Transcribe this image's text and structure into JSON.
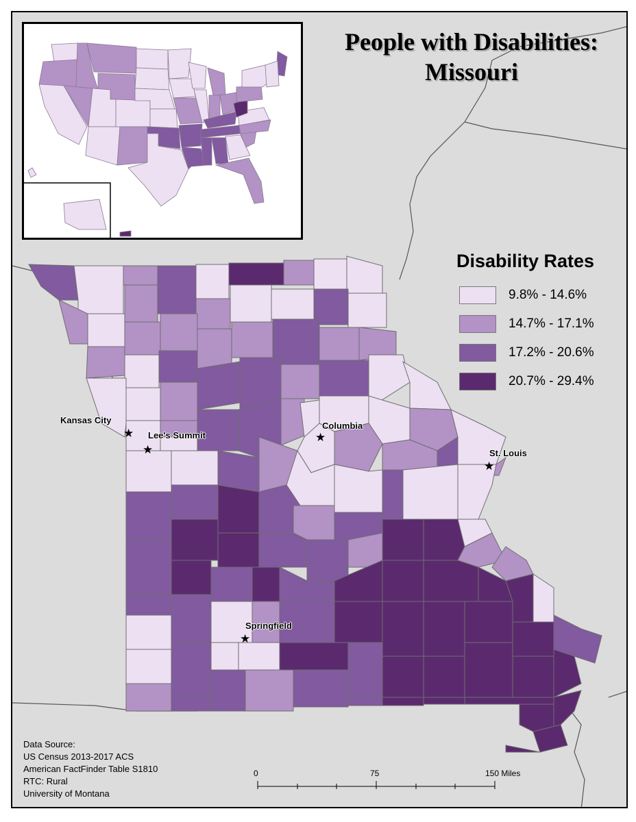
{
  "title": {
    "line1": "People with Disabilities:",
    "line2": "Missouri"
  },
  "legend": {
    "title": "Disability Rates",
    "classes": [
      {
        "label": "9.8% - 14.6%",
        "color": "#ede0f3"
      },
      {
        "label": "14.7% - 17.1%",
        "color": "#b392c6"
      },
      {
        "label": "17.2% - 20.6%",
        "color": "#815a9f"
      },
      {
        "label": "20.7% - 29.4%",
        "color": "#5b2a6e"
      }
    ]
  },
  "cities": [
    {
      "name": "Kansas City"
    },
    {
      "name": "Lee's Summit"
    },
    {
      "name": "Columbia"
    },
    {
      "name": "St. Louis"
    },
    {
      "name": "Springfield"
    }
  ],
  "source": {
    "line1": "Data Source:",
    "line2": "US Census 2013-2017 ACS",
    "line3": "American FactFinder Table S1810",
    "line4": "RTC: Rural",
    "line5": "University of Montana"
  },
  "scale": {
    "label0": "0",
    "label75": "75",
    "label150": "150 Miles"
  },
  "colors": {
    "background": "#dcdcdc",
    "border": "#000000",
    "county_border": "#6e6e6e",
    "river": "#555555"
  }
}
